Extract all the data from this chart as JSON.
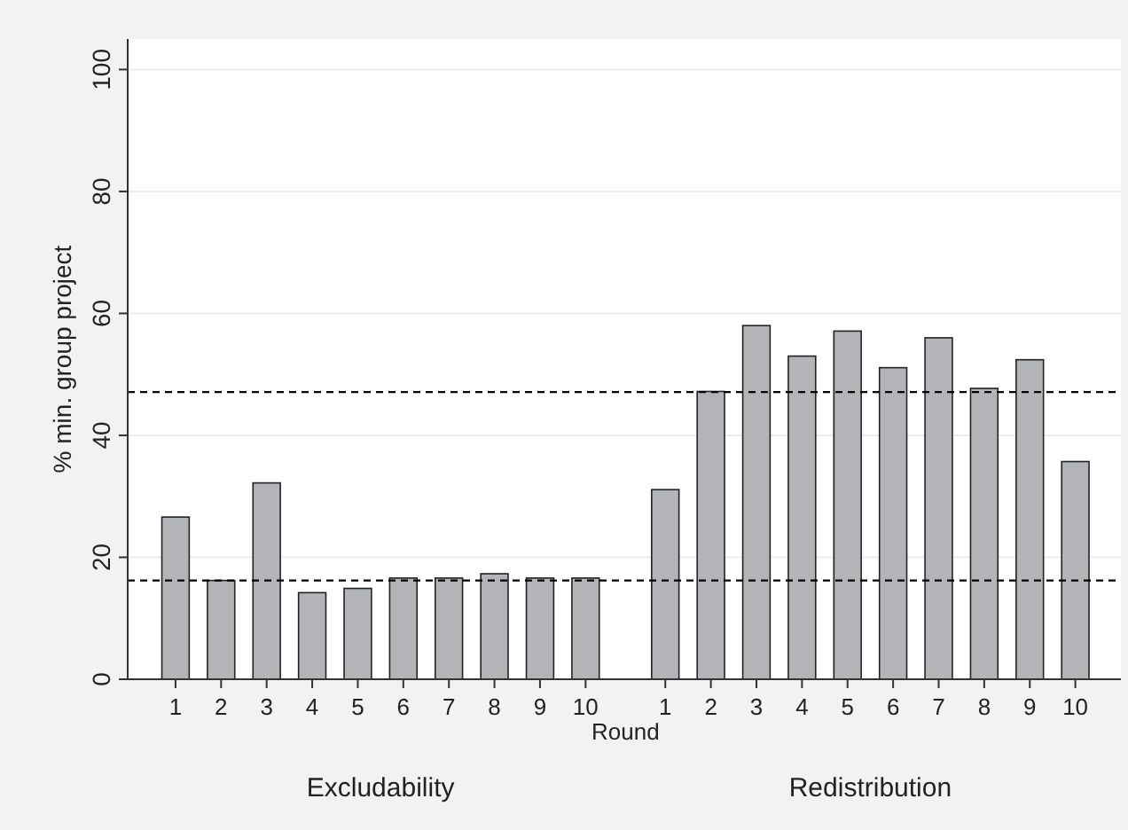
{
  "chart_data": {
    "type": "bar",
    "xlabel": "Round",
    "ylabel": "% min. group project",
    "categories": [
      "1",
      "2",
      "3",
      "4",
      "5",
      "6",
      "7",
      "8",
      "9",
      "10",
      "1",
      "2",
      "3",
      "4",
      "5",
      "6",
      "7",
      "8",
      "9",
      "10"
    ],
    "values": [
      26.6,
      16.2,
      32.2,
      14.2,
      14.9,
      16.6,
      16.6,
      17.3,
      16.6,
      16.6,
      31.1,
      47.2,
      58.0,
      53.0,
      57.1,
      51.1,
      56.0,
      47.7,
      52.4,
      35.7
    ],
    "color": "#b3b4b8",
    "ylim": [
      0,
      105
    ],
    "yticks": [
      0,
      20,
      40,
      60,
      80,
      100
    ],
    "grid": "y",
    "ref_lines": [
      {
        "axis": "y",
        "value": 16.2,
        "line_style": "dashed",
        "color": "#000000"
      },
      {
        "axis": "y",
        "value": 47.1,
        "line_style": "dashed",
        "color": "#000000"
      }
    ],
    "annotations": [
      "Excludability",
      "Redistribution"
    ]
  }
}
